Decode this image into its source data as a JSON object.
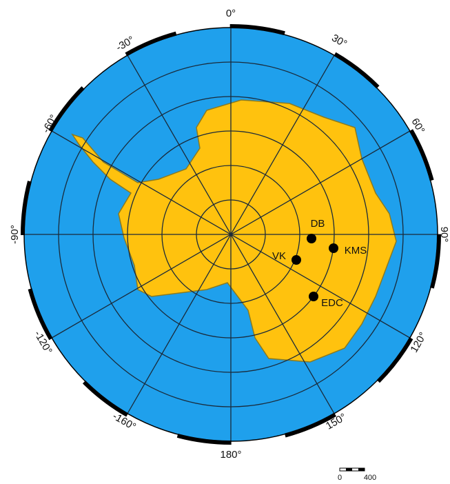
{
  "map": {
    "longitude_labels": [
      "0°",
      "30°",
      "60°",
      "90°",
      "120°",
      "150°",
      "180°",
      "-160°",
      "-120°",
      "-90°",
      "-60°",
      "-30°"
    ],
    "stations": [
      {
        "label": "DB"
      },
      {
        "label": "KMS"
      },
      {
        "label": "VK"
      },
      {
        "label": "EDC"
      }
    ],
    "scale": {
      "start": "0",
      "end": "400"
    }
  }
}
